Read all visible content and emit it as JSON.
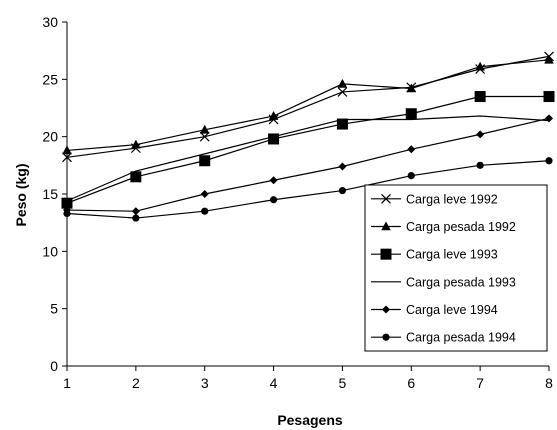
{
  "chart_data": {
    "type": "line",
    "title": "",
    "xlabel": "Pesagens",
    "ylabel": "Peso (kg)",
    "x": [
      1,
      2,
      3,
      4,
      5,
      6,
      7,
      8
    ],
    "xlim": [
      1,
      8
    ],
    "ylim": [
      0,
      30
    ],
    "yticks": [
      0,
      5,
      10,
      15,
      20,
      25,
      30
    ],
    "grid": false,
    "legend_position": "bottom-right",
    "series": [
      {
        "name": "Carga leve 1992",
        "marker": "x",
        "color": "#000000",
        "values": [
          18.2,
          19.0,
          20.0,
          21.5,
          23.9,
          24.3,
          25.9,
          27.0
        ]
      },
      {
        "name": "Carga pesada 1992",
        "marker": "triangle",
        "color": "#000000",
        "values": [
          18.8,
          19.3,
          20.6,
          21.8,
          24.6,
          24.2,
          26.1,
          26.7
        ]
      },
      {
        "name": "Carga leve 1993",
        "marker": "square",
        "color": "#000000",
        "values": [
          14.2,
          16.5,
          17.9,
          19.8,
          21.1,
          22.0,
          23.5,
          23.5
        ]
      },
      {
        "name": "Carga pesada 1993",
        "marker": "none",
        "color": "#000000",
        "values": [
          14.4,
          17.0,
          18.5,
          20.0,
          21.5,
          21.5,
          21.8,
          21.4
        ]
      },
      {
        "name": "Carga leve 1994",
        "marker": "diamond",
        "color": "#000000",
        "values": [
          13.6,
          13.5,
          15.0,
          16.2,
          17.4,
          18.9,
          20.2,
          21.6
        ]
      },
      {
        "name": "Carga pesada 1994",
        "marker": "circle",
        "color": "#000000",
        "values": [
          13.3,
          12.9,
          13.5,
          14.5,
          15.3,
          16.6,
          17.5,
          17.9
        ]
      }
    ]
  }
}
